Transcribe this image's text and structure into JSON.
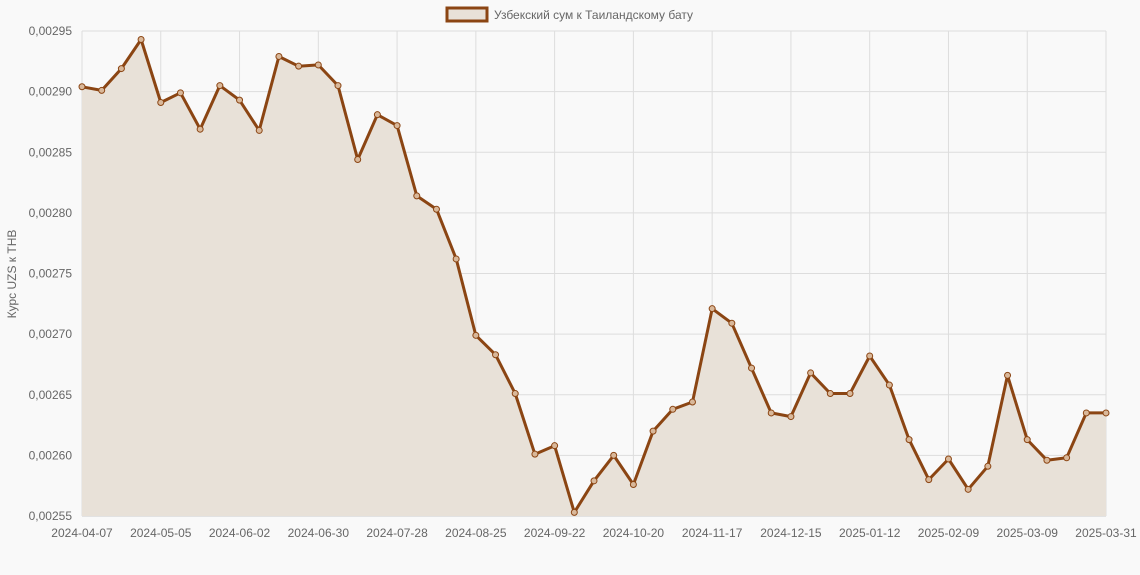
{
  "chart_data": {
    "type": "area",
    "title": "",
    "xlabel": "",
    "ylabel": "Курс UZS к THB",
    "legend": {
      "position": "top",
      "entries": [
        "Узбекский сум к Таиландскому бату"
      ]
    },
    "grid": true,
    "ylim": [
      0.00255,
      0.00295
    ],
    "ytick_step": 5e-05,
    "colors": {
      "line": "#8b4513",
      "fill": "#e8e1d8",
      "grid": "#dddddd"
    },
    "x_tick_labels": [
      "2024-04-07",
      "2024-05-05",
      "2024-06-02",
      "2024-06-30",
      "2024-07-28",
      "2024-08-25",
      "2024-09-22",
      "2024-10-20",
      "2024-11-17",
      "2024-12-15",
      "2025-01-12",
      "2025-02-09",
      "2025-03-09",
      "2025-03-31"
    ],
    "series": [
      {
        "name": "Узбекский сум к Таиландскому бату",
        "x": [
          "2024-04-07",
          "2024-04-14",
          "2024-04-21",
          "2024-04-28",
          "2024-05-05",
          "2024-05-12",
          "2024-05-19",
          "2024-05-26",
          "2024-06-02",
          "2024-06-09",
          "2024-06-16",
          "2024-06-23",
          "2024-06-30",
          "2024-07-07",
          "2024-07-14",
          "2024-07-21",
          "2024-07-28",
          "2024-08-04",
          "2024-08-11",
          "2024-08-18",
          "2024-08-25",
          "2024-09-01",
          "2024-09-08",
          "2024-09-15",
          "2024-09-22",
          "2024-09-29",
          "2024-10-06",
          "2024-10-13",
          "2024-10-20",
          "2024-10-27",
          "2024-11-03",
          "2024-11-10",
          "2024-11-17",
          "2024-11-24",
          "2024-12-01",
          "2024-12-08",
          "2024-12-15",
          "2024-12-22",
          "2024-12-29",
          "2025-01-05",
          "2025-01-12",
          "2025-01-19",
          "2025-01-26",
          "2025-02-02",
          "2025-02-09",
          "2025-02-16",
          "2025-02-23",
          "2025-03-02",
          "2025-03-09",
          "2025-03-16",
          "2025-03-23",
          "2025-03-30",
          "2025-03-31"
        ],
        "values": [
          0.002904,
          0.002901,
          0.002919,
          0.002943,
          0.002891,
          0.002899,
          0.002869,
          0.002905,
          0.002893,
          0.002868,
          0.002929,
          0.002921,
          0.002922,
          0.002905,
          0.002844,
          0.002881,
          0.002872,
          0.002814,
          0.002803,
          0.002762,
          0.002699,
          0.002683,
          0.002651,
          0.002601,
          0.002608,
          0.002553,
          0.002579,
          0.0026,
          0.002576,
          0.00262,
          0.002638,
          0.002644,
          0.002721,
          0.002709,
          0.002672,
          0.002635,
          0.002632,
          0.002668,
          0.002651,
          0.002651,
          0.002682,
          0.002658,
          0.002613,
          0.00258,
          0.002597,
          0.002572,
          0.002591,
          0.002666,
          0.002613,
          0.002596,
          0.002598,
          0.002635,
          0.002635
        ]
      }
    ]
  }
}
